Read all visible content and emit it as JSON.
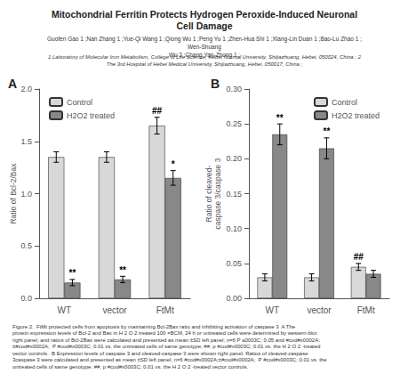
{
  "title": "Mitochondrial Ferritin Protects Hydrogen Peroxide-Induced Neuronal\nCell Damage",
  "subtitle": "Guofen Gao 1 ;Nan Zhang 1 ;Yue-Qi Wang 1 ;Qiong Wu 1 ;Peng Yu 1 ;Zhen-Hua Shi 1 ;Xiang-Lin Duan 1 ;Bao-Lu Zhao 1 ;Wen-Shuang\nWu 2 ;Chang Yan-Zhong 1 ;",
  "annotations": [
    "1 Laboratory of Molecular Iron Metabolism, College of Life Science, Hebei Normal University, Shijiazhuang, Hebei, 050024, China ; 2\nThe 3rd Hospital of Hebei Medical University, Shijiazhuang, Hebei, 050017, China ;",
    "Figure 2.  FtMt protected cells from apoptosis by maintaining Bcl-2Bax ratio and inhibiting activation of caspase 3  A The protein expression levels of Bcl-2 and Bax in H 2 O 2 treated 100 ×BCM, 24 h or untreated cells were determined by western-blot right panel, and ratios of Bcl-2Bax were calculated and presented as mean ±SD left panel; n=6 P ≤0003C; 0.05 and #cod#x0002A;±#cod#x0002A;  P #cod#x0003C; 0.01 vs. the untreated cells of same genotype; ##, p #cod#x0003C; 0.01 vs. the H 2 O 2 -treated vector controls.  B Expression levels of caspase 3 and cleaved-caspase 3 were shown right panel. Ratios of cleaved-caspase 3caspase 3 were calculated and presented as mean ±SD left panel; n=6 #cod#x0002A;±#cod#x0002A;  P #cod#x0003C; 0.01 vs. the untreated cells of same genotype; ##, p #cod#x0003C; 0.01 vs. the H 2 O 2 -treated vector controls."
  ],
  "chart_data": [
    {
      "type": "bar",
      "title": "A",
      "categories": [
        "WT",
        "vector",
        "FtMt"
      ],
      "series": [
        {
          "name": "Control",
          "color": "#d8d8d8",
          "values": [
            1.35,
            1.35,
            1.65
          ],
          "errors": [
            0.05,
            0.05,
            0.08
          ]
        },
        {
          "name": "H2O2 treated",
          "color": "#888888",
          "values": [
            0.15,
            0.18,
            1.15
          ],
          "errors": [
            0.03,
            0.03,
            0.07
          ]
        }
      ],
      "ylabel": "Ratio of Bcl-2/Bax",
      "ylim": [
        0,
        2
      ],
      "yticks": [
        {
          "value": 0,
          "label": "0.0"
        },
        0.5,
        {
          "value": 1.0,
          "label": "1.0"
        },
        1.5,
        {
          "value": 2.0,
          "label": "2.0"
        }
      ],
      "grid": false,
      "legend": "upper left",
      "annotations": [
        {
          "text": "**",
          "category": "WT",
          "series": "H2O2 treated"
        },
        {
          "text": "**",
          "category": "vector",
          "series": "H2O2 treated"
        },
        {
          "text": "##",
          "category": "FtMt",
          "series": "Control"
        },
        {
          "text": "*",
          "category": "FtMt",
          "series": "H2O2 treated"
        }
      ]
    },
    {
      "type": "bar",
      "title": "B",
      "categories": [
        "WT",
        "vector",
        "FtMt"
      ],
      "series": [
        {
          "name": "Control",
          "color": "#d8d8d8",
          "values": [
            0.03,
            0.03,
            0.045
          ],
          "errors": [
            0.005,
            0.005,
            0.005
          ]
        },
        {
          "name": "H2O2 treated",
          "color": "#888888",
          "values": [
            0.235,
            0.215,
            0.035
          ],
          "errors": [
            0.015,
            0.015,
            0.005
          ]
        }
      ],
      "ylabel": "Ratio of cleaved-\ncaspase 3/caspase 3",
      "ylim": [
        0,
        0.3
      ],
      "yticks": [
        {
          "value": 0,
          "label": "0.00"
        },
        0.05,
        {
          "value": 0.1,
          "label": "0.10"
        },
        0.15,
        {
          "value": 0.2,
          "label": "0.20"
        },
        0.25,
        {
          "value": 0.3,
          "label": "0.30"
        }
      ],
      "grid": false,
      "legend": "upper right",
      "annotations": [
        {
          "text": "**",
          "category": "WT",
          "series": "H2O2 treated"
        },
        {
          "text": "**",
          "category": "vector",
          "series": "H2O2 treated"
        },
        {
          "text": "##",
          "category": "FtMt",
          "series": "Control"
        }
      ]
    }
  ]
}
